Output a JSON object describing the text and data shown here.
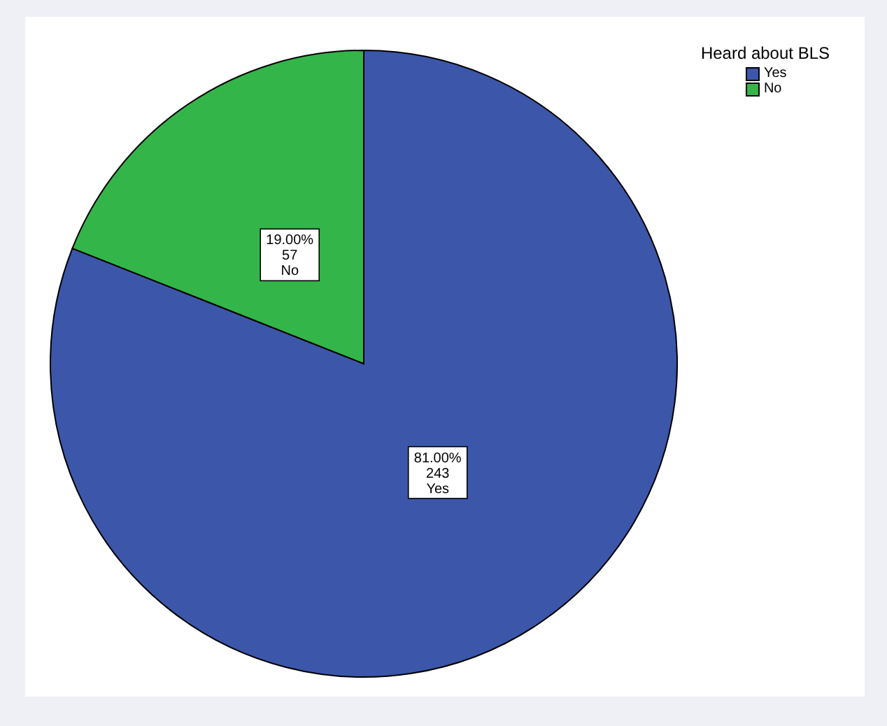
{
  "chart_data": {
    "type": "pie",
    "legend_title": "Heard about BLS",
    "categories": [
      "Yes",
      "No"
    ],
    "values": [
      81,
      19
    ],
    "colors": [
      "#3c56aa",
      "#33b54a"
    ],
    "value_labels": [
      "81.00%\n243",
      "19.00%\n57"
    ],
    "legend": "top right"
  }
}
